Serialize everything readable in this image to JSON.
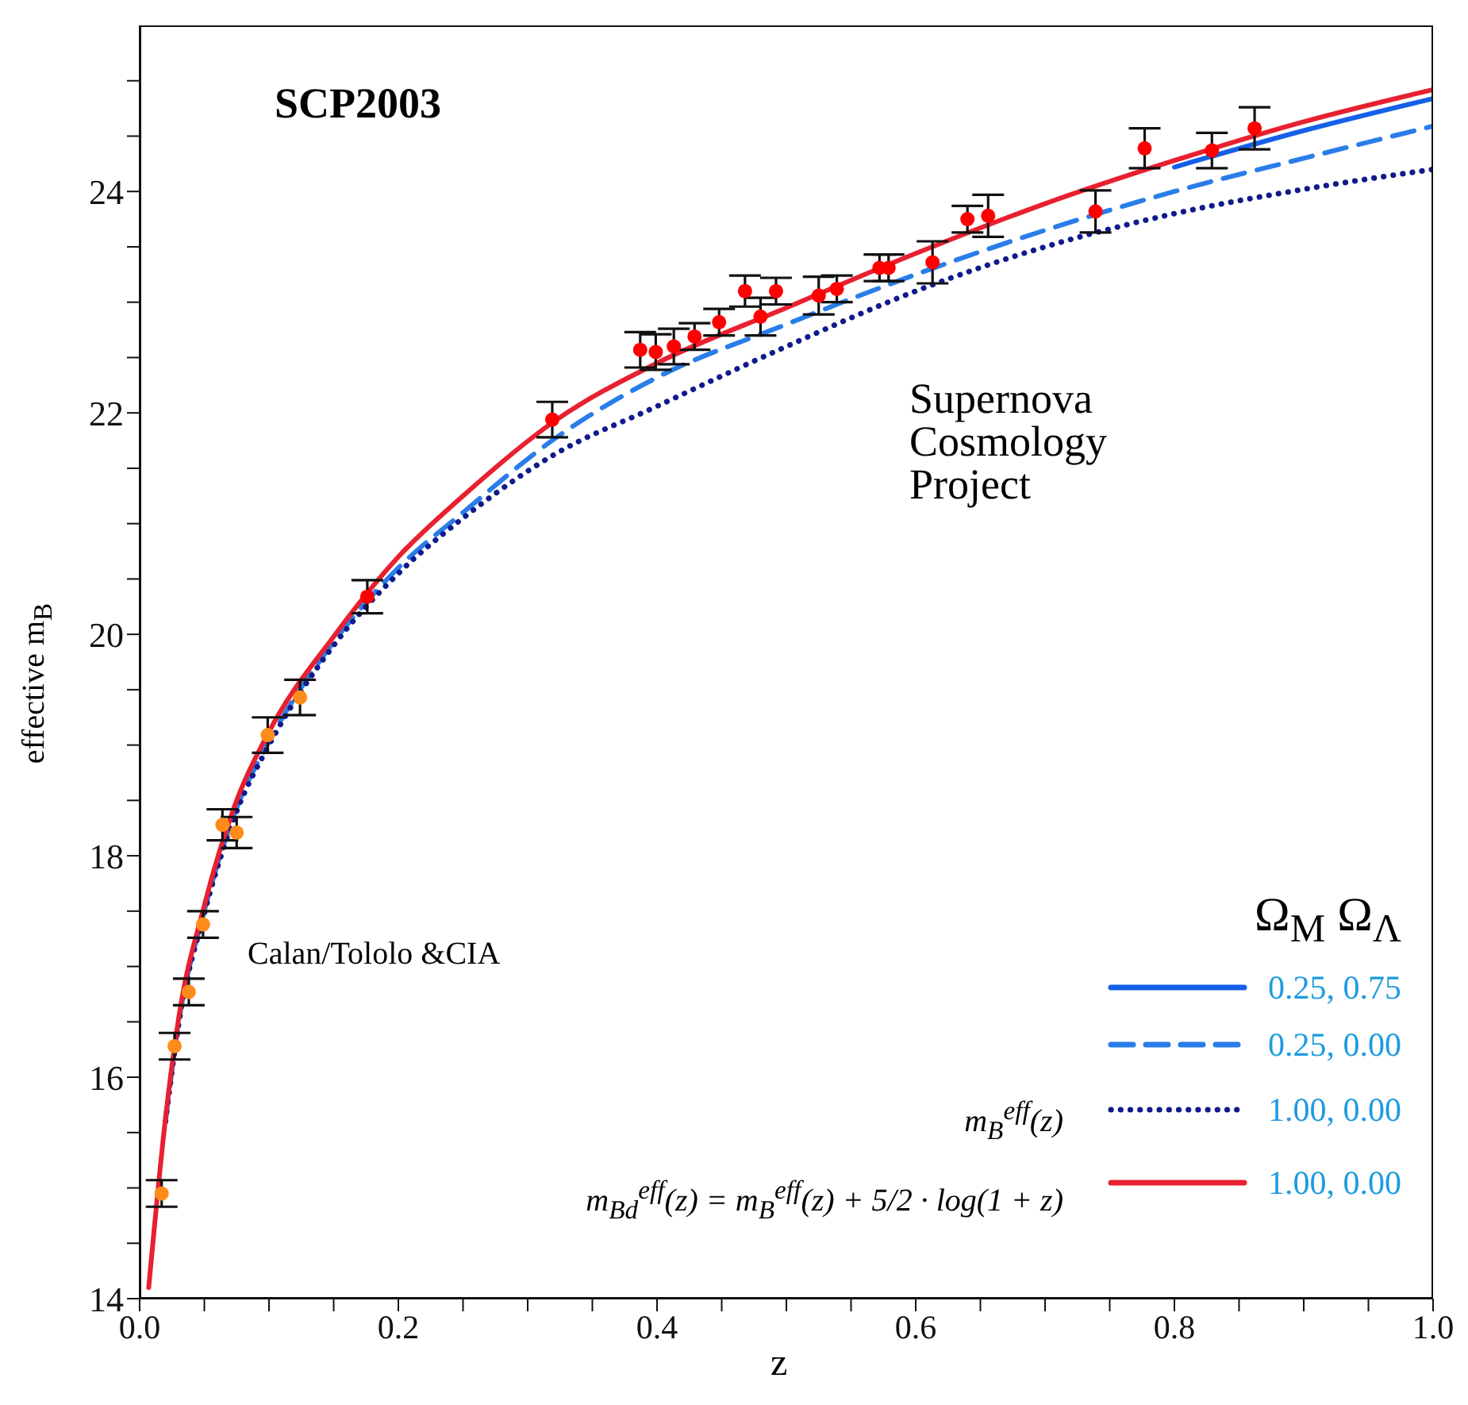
{
  "chart_data": {
    "type": "line",
    "xlabel": "z",
    "ylabel": "effective m$_{B}$",
    "legend_title": "Ω$_{M}$ Ω$_{Λ}$",
    "legend": "bottom right",
    "xlim": [
      0,
      1
    ],
    "xticks": [
      {
        "value": 0,
        "label": "0.0"
      },
      {
        "value": 0.05,
        "label": null
      },
      {
        "value": 0.1,
        "label": null
      },
      {
        "value": 0.15,
        "label": null
      },
      {
        "value": 0.2,
        "label": "0.2"
      },
      {
        "value": 0.25,
        "label": null
      },
      {
        "value": 0.3,
        "label": null
      },
      {
        "value": 0.35,
        "label": null
      },
      {
        "value": 0.4,
        "label": "0.4"
      },
      {
        "value": 0.45,
        "label": null
      },
      {
        "value": 0.5,
        "label": null
      },
      {
        "value": 0.55,
        "label": null
      },
      {
        "value": 0.6,
        "label": "0.6"
      },
      {
        "value": 0.65,
        "label": null
      },
      {
        "value": 0.7,
        "label": null
      },
      {
        "value": 0.75,
        "label": null
      },
      {
        "value": 0.8,
        "label": "0.8"
      },
      {
        "value": 0.85,
        "label": null
      },
      {
        "value": 0.9,
        "label": null
      },
      {
        "value": 0.95,
        "label": null
      },
      {
        "value": 1,
        "label": "1.0"
      }
    ],
    "ylim": [
      14,
      25.5
    ],
    "yticks": [
      14,
      {
        "value": 14.5,
        "label": null
      },
      {
        "value": 15,
        "label": null
      },
      {
        "value": 15.5,
        "label": null
      },
      16,
      {
        "value": 16.5,
        "label": null
      },
      {
        "value": 17,
        "label": null
      },
      {
        "value": 17.5,
        "label": null
      },
      18,
      {
        "value": 18.5,
        "label": null
      },
      {
        "value": 19,
        "label": null
      },
      {
        "value": 19.5,
        "label": null
      },
      20,
      {
        "value": 20.5,
        "label": null
      },
      {
        "value": 21,
        "label": null
      },
      {
        "value": 21.5,
        "label": null
      },
      22,
      {
        "value": 22.5,
        "label": null
      },
      {
        "value": 23,
        "label": null
      },
      {
        "value": 23.5,
        "label": null
      },
      24,
      {
        "value": 24.5,
        "label": null
      },
      {
        "value": 25,
        "label": null
      }
    ],
    "annotations": [
      "SCP2003",
      "Supernova Cosmology Project",
      "Calan/Tololo &CIA",
      "m$_{B}$$^{eff}$(z)",
      "m$_{Bd}$$^{eff}$(z) = m$_{B}$$^{eff}$(z) + 5/2 · log(1 + z)"
    ],
    "series": [
      {
        "name": "0.25, 0.75",
        "line_style": "solid",
        "marker": "none",
        "color": "#1560e8",
        "x": [
          0.8,
          0.9,
          1.0
        ],
        "values": [
          24.22,
          24.55,
          24.84
        ]
      },
      {
        "name": "0.25, 0.00",
        "line_style": "dashed",
        "marker": "none",
        "color": "#2a7de8",
        "x": [
          0.02,
          0.03,
          0.05,
          0.075,
          0.1,
          0.15,
          0.2,
          0.25,
          0.32,
          0.4,
          0.5,
          0.6,
          0.7,
          0.8,
          0.9,
          1.0
        ],
        "values": [
          15.6,
          16.48,
          17.5,
          18.43,
          19.03,
          19.93,
          20.6,
          21.1,
          21.76,
          22.32,
          22.8,
          23.25,
          23.65,
          24.0,
          24.3,
          24.59
        ]
      },
      {
        "name": "1.00, 0.00",
        "line_style": "dotted",
        "marker": "none",
        "color": "#101a8c",
        "x": [
          0.02,
          0.03,
          0.05,
          0.075,
          0.1,
          0.15,
          0.2,
          0.25,
          0.32,
          0.4,
          0.5,
          0.6,
          0.7,
          0.8,
          0.9,
          1.0
        ],
        "values": [
          15.6,
          16.47,
          17.48,
          18.4,
          19.0,
          19.9,
          20.55,
          21.05,
          21.62,
          22.06,
          22.6,
          23.1,
          23.5,
          23.8,
          24.02,
          24.2
        ]
      },
      {
        "name": "1.00, 0.00",
        "line_style": "solid",
        "marker": "none",
        "color": "#e8202f",
        "x": [
          0.007,
          0.02,
          0.03,
          0.05,
          0.075,
          0.1,
          0.15,
          0.2,
          0.25,
          0.32,
          0.4,
          0.5,
          0.6,
          0.7,
          0.8,
          0.9,
          1.0
        ],
        "values": [
          14.1,
          15.63,
          16.52,
          17.55,
          18.5,
          19.12,
          19.98,
          20.7,
          21.25,
          21.92,
          22.45,
          22.95,
          23.44,
          23.89,
          24.28,
          24.63,
          24.92
        ]
      },
      {
        "type": "scatter",
        "marker": "circle",
        "color": "#ff8c1a",
        "x": [
          0.017,
          0.027,
          0.038,
          0.049,
          0.064,
          0.075,
          0.099,
          0.124
        ],
        "values": [
          14.95,
          16.28,
          16.77,
          17.38,
          18.28,
          18.21,
          19.09,
          19.43
        ],
        "errors": [
          0.12,
          0.12,
          0.12,
          0.12,
          0.14,
          0.14,
          0.16,
          0.16
        ]
      },
      {
        "type": "scatter",
        "marker": "circle",
        "color": "#ff0000",
        "x": [
          0.176,
          0.319,
          0.387,
          0.399,
          0.413,
          0.429,
          0.448,
          0.468,
          0.48,
          0.492,
          0.525,
          0.539,
          0.572,
          0.579,
          0.613,
          0.64,
          0.656,
          0.739,
          0.777,
          0.829,
          0.862
        ],
        "values": [
          20.34,
          21.94,
          22.57,
          22.55,
          22.6,
          22.69,
          22.82,
          23.1,
          22.87,
          23.1,
          23.06,
          23.12,
          23.31,
          23.31,
          23.36,
          23.75,
          23.78,
          23.82,
          24.39,
          24.37,
          24.57
        ],
        "errors": [
          0.15,
          0.16,
          0.16,
          0.16,
          0.16,
          0.12,
          0.12,
          0.14,
          0.17,
          0.12,
          0.17,
          0.12,
          0.12,
          0.12,
          0.19,
          0.12,
          0.19,
          0.19,
          0.18,
          0.16,
          0.19
        ]
      }
    ]
  }
}
